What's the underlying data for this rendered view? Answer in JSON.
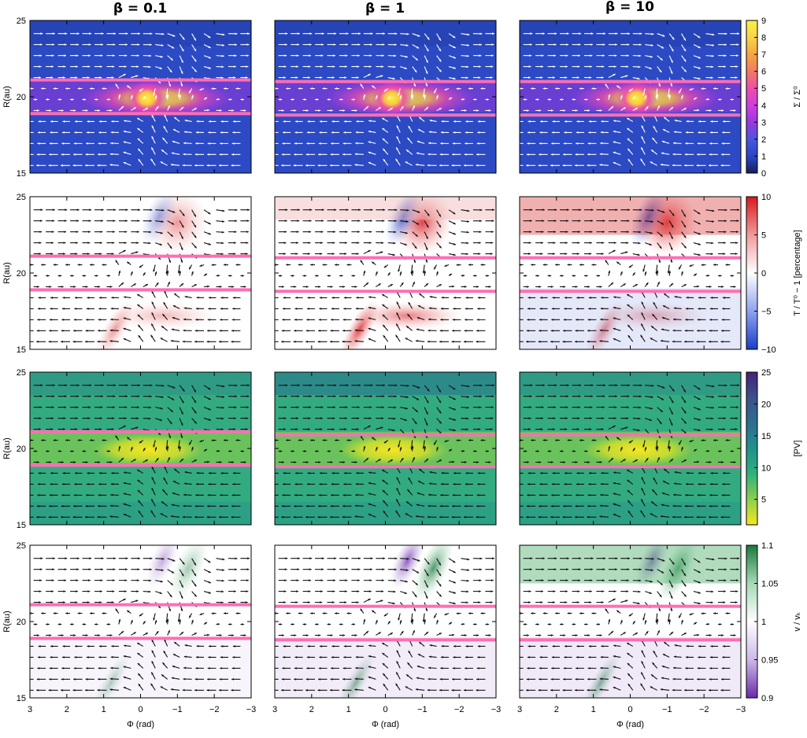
{
  "figure": {
    "columns": [
      "β = 0.1",
      "β = 1",
      "β = 10"
    ],
    "ylabel": "R(au)",
    "xlabel": "Φ (rad)",
    "x_ticks": [
      "3",
      "2",
      "1",
      "0",
      "−1",
      "−2",
      "−3"
    ],
    "y_ticks": [
      "25",
      "20",
      "15"
    ]
  },
  "chart_data": {
    "type": "heatmap",
    "x_range": [
      3,
      -3
    ],
    "y_range": [
      15,
      25
    ],
    "x_ticks": [
      3,
      2,
      1,
      0,
      -1,
      -2,
      -3
    ],
    "y_ticks": [
      25,
      20,
      15
    ],
    "gap_edges": {
      "surface_density": [
        [
          21.1,
          18.9
        ],
        [
          21.0,
          18.8
        ],
        [
          21.0,
          18.8
        ]
      ],
      "temperature": [
        [
          21.1,
          18.9
        ],
        [
          21.0,
          18.8
        ],
        [
          21.0,
          18.8
        ]
      ],
      "pv": [
        [
          21.1,
          18.9
        ],
        [
          20.9,
          18.8
        ],
        [
          20.9,
          18.8
        ]
      ],
      "velocity": [
        [
          21.1,
          18.9
        ],
        [
          21.0,
          18.8
        ],
        [
          21.0,
          18.8
        ]
      ]
    },
    "rows": [
      {
        "name": "surface_density",
        "colorbar_label": "Σ / Σ⁰",
        "colorbar_ticks": [
          "9",
          "8",
          "7",
          "6",
          "5",
          "4",
          "3",
          "2",
          "1",
          "0"
        ],
        "range": [
          0,
          9
        ],
        "colors": [
          "#17205a",
          "#2a46c6",
          "#4a55dd",
          "#9a37dc",
          "#cf3fe0",
          "#ee4ea8",
          "#f27a63",
          "#f6a53e",
          "#f9d34a",
          "#f7f245"
        ],
        "background": "#2b4ac3",
        "arrow_color": "#ffffff"
      },
      {
        "name": "temperature",
        "colorbar_label": "T / T⁰ − 1 [percentage]",
        "colorbar_ticks": [
          "10",
          "5",
          "0",
          "−5",
          "−10"
        ],
        "range": [
          -10,
          10
        ],
        "colors": [
          "#1a3ec8",
          "#8ea2ee",
          "#ffffff",
          "#f09a9a",
          "#d9181e"
        ],
        "background": "#ffffff",
        "arrow_color": "#111111"
      },
      {
        "name": "pv",
        "colorbar_label": "[PV]",
        "colorbar_ticks": [
          "25",
          "20",
          "15",
          "10",
          "5"
        ],
        "range": [
          1,
          25
        ],
        "colors": [
          "#f8e620",
          "#8bd04c",
          "#2eb17c",
          "#21918c",
          "#2c6f8e",
          "#3b518b",
          "#44217a"
        ],
        "background": "#33ab80",
        "arrow_color": "#111111"
      },
      {
        "name": "velocity",
        "colorbar_label": "v / vₖ",
        "colorbar_ticks": [
          "1.1",
          "1.05",
          "1",
          "0.95",
          "0.9"
        ],
        "range": [
          0.9,
          1.1
        ],
        "colors": [
          "#6a2bab",
          "#cdb8e8",
          "#ffffff",
          "#a6d9b6",
          "#1a7a3e"
        ],
        "background": "#ffffff",
        "arrow_color": "#111111"
      }
    ]
  }
}
